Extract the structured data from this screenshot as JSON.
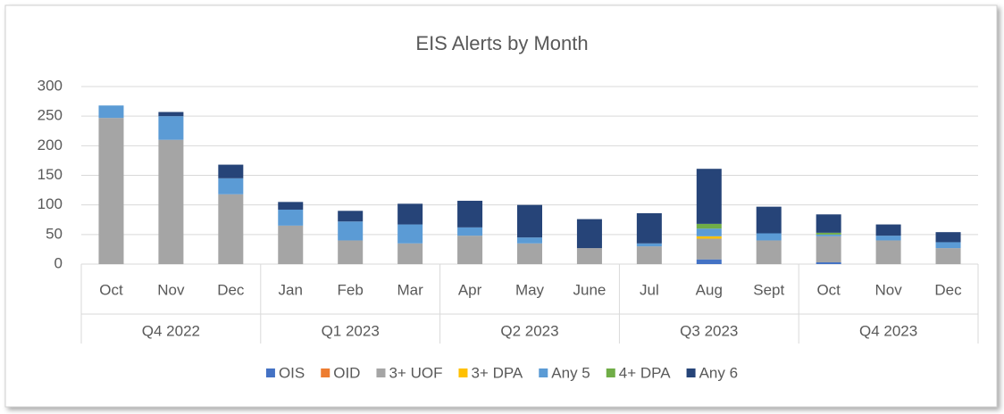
{
  "chart_data": {
    "type": "bar",
    "stacked": true,
    "title": "EIS Alerts by Month",
    "categories": [
      "Oct",
      "Nov",
      "Dec",
      "Jan",
      "Feb",
      "Mar",
      "Apr",
      "May",
      "June",
      "Jul",
      "Aug",
      "Sept",
      "Oct",
      "Nov",
      "Dec"
    ],
    "category_groups": [
      {
        "label": "Q4 2022",
        "span": 3
      },
      {
        "label": "Q1 2023",
        "span": 3
      },
      {
        "label": "Q2 2023",
        "span": 3
      },
      {
        "label": "Q3 2023",
        "span": 3
      },
      {
        "label": "Q4 2023",
        "span": 3
      }
    ],
    "series": [
      {
        "name": "OIS",
        "color": "#4472c4",
        "values": [
          0,
          0,
          0,
          0,
          0,
          0,
          0,
          0,
          0,
          0,
          8,
          0,
          3,
          0,
          0
        ]
      },
      {
        "name": "OID",
        "color": "#ed7d31",
        "values": [
          0,
          0,
          0,
          0,
          0,
          0,
          0,
          0,
          0,
          0,
          0,
          0,
          0,
          0,
          0
        ]
      },
      {
        "name": "3+ UOF",
        "color": "#a5a5a5",
        "values": [
          247,
          210,
          118,
          65,
          40,
          35,
          48,
          35,
          27,
          30,
          35,
          40,
          44,
          40,
          27
        ]
      },
      {
        "name": "3+ DPA",
        "color": "#ffc000",
        "values": [
          0,
          0,
          0,
          0,
          0,
          0,
          0,
          0,
          0,
          0,
          4,
          0,
          0,
          0,
          0
        ]
      },
      {
        "name": "Any 5",
        "color": "#5b9bd5",
        "values": [
          21,
          40,
          27,
          27,
          32,
          32,
          14,
          10,
          0,
          5,
          13,
          12,
          3,
          8,
          10
        ]
      },
      {
        "name": "4+ DPA",
        "color": "#70ad47",
        "values": [
          0,
          0,
          0,
          0,
          0,
          0,
          0,
          0,
          0,
          0,
          8,
          0,
          3,
          0,
          0
        ]
      },
      {
        "name": "Any 6",
        "color": "#264478",
        "values": [
          0,
          7,
          23,
          13,
          18,
          35,
          45,
          55,
          49,
          51,
          93,
          45,
          31,
          19,
          17
        ]
      }
    ],
    "ylim": [
      0,
      300
    ],
    "yticks": [
      0,
      50,
      100,
      150,
      200,
      250,
      300
    ],
    "grid": true,
    "legend": "bottom"
  }
}
